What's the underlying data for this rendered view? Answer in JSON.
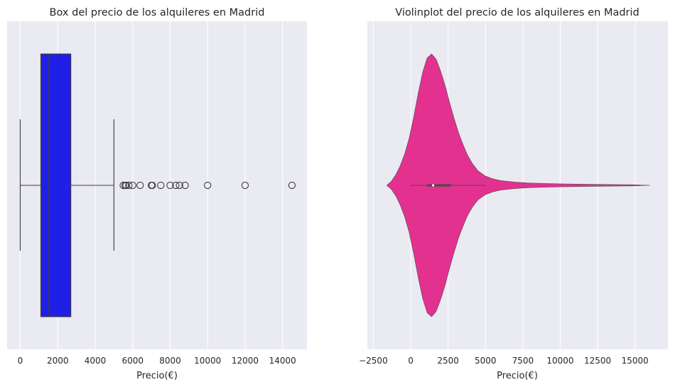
{
  "chart_data": [
    {
      "type": "box",
      "title": "Box del precio de los alquileres en Madrid",
      "xlabel": "Precio(€)",
      "ylabel": "",
      "xlim": [
        -700,
        15300
      ],
      "xticks": [
        0,
        2000,
        4000,
        6000,
        8000,
        10000,
        12000,
        14000
      ],
      "xtick_labels": [
        "0",
        "2000",
        "4000",
        "6000",
        "8000",
        "10000",
        "12000",
        "14000"
      ],
      "stats": {
        "whisker_low": 0,
        "q1": 1100,
        "median": 1500,
        "q3": 2700,
        "whisker_high": 5000
      },
      "outliers": [
        5500,
        5600,
        5650,
        5800,
        6000,
        6400,
        7000,
        7050,
        7500,
        8000,
        8300,
        8500,
        8800,
        10000,
        12000,
        14500
      ],
      "box_color": "#1f1fe8",
      "background": "#eaeaf2",
      "grid": true
    },
    {
      "type": "violin",
      "title": "Violinplot del precio de los alquileres en Madrid",
      "xlabel": "Precio(€)",
      "ylabel": "",
      "xlim": [
        -2900,
        17200
      ],
      "xticks": [
        -2500,
        0,
        2500,
        5000,
        7500,
        10000,
        12500,
        15000
      ],
      "xtick_labels": [
        "−2500",
        "0",
        "2500",
        "5000",
        "7500",
        "10000",
        "12500",
        "15000"
      ],
      "density_x": [
        -1600,
        -1300,
        -1000,
        -700,
        -400,
        -100,
        200,
        500,
        800,
        1100,
        1400,
        1700,
        2000,
        2300,
        2600,
        2900,
        3200,
        3500,
        3800,
        4100,
        4500,
        5000,
        5500,
        6000,
        7000,
        8000,
        10000,
        12500,
        15000,
        16000
      ],
      "density_y": [
        0.0,
        0.03,
        0.08,
        0.15,
        0.24,
        0.36,
        0.52,
        0.7,
        0.86,
        0.97,
        1.0,
        0.96,
        0.87,
        0.76,
        0.63,
        0.51,
        0.4,
        0.31,
        0.23,
        0.17,
        0.11,
        0.07,
        0.05,
        0.036,
        0.024,
        0.017,
        0.011,
        0.007,
        0.004,
        0.0
      ],
      "inner_box": {
        "whisker_low": 0,
        "q1": 1100,
        "median": 1500,
        "q3": 2700,
        "whisker_high": 5000
      },
      "violin_color": "#e33190",
      "background": "#eaeaf2",
      "grid": true
    }
  ]
}
